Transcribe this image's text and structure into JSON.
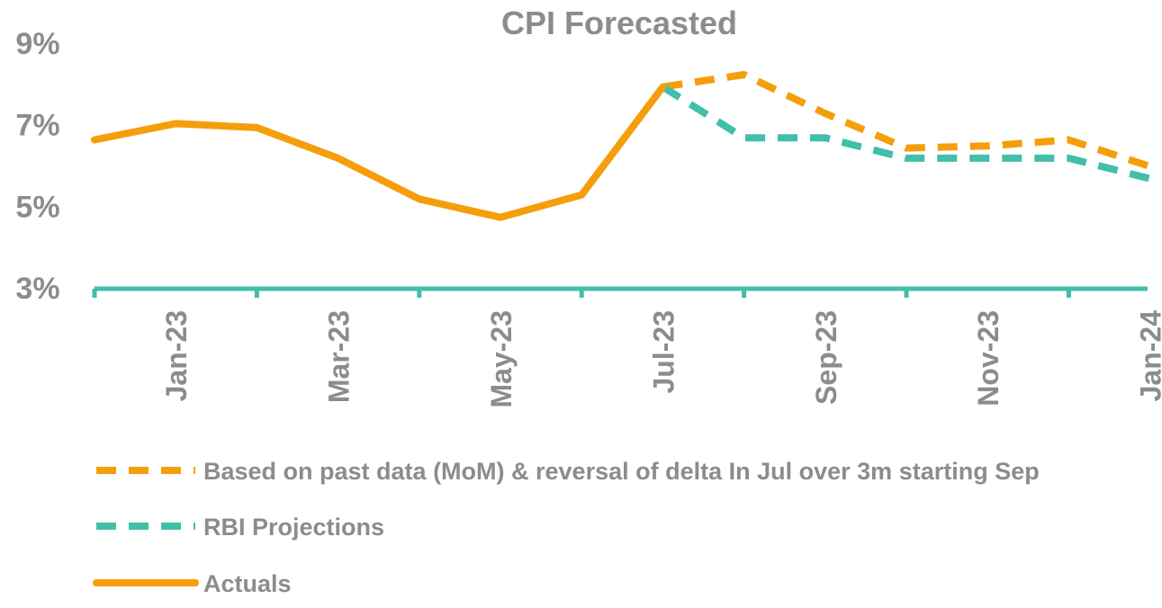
{
  "chart_data": {
    "type": "line",
    "title": "CPI Forecasted",
    "xlabel": "",
    "ylabel": "",
    "x": [
      "Dec-22",
      "Jan-23",
      "Feb-23",
      "Mar-23",
      "Apr-23",
      "May-23",
      "Jun-23",
      "Jul-23",
      "Aug-23",
      "Sep-23",
      "Oct-23",
      "Nov-23",
      "Dec-23",
      "Jan-24"
    ],
    "x_tick_labels": [
      "Jan-23",
      "Mar-23",
      "May-23",
      "Jul-23",
      "Sep-23",
      "Nov-23",
      "Jan-24"
    ],
    "y_tick_labels": [
      "9%",
      "7%",
      "5%",
      "3%"
    ],
    "ylim": [
      3,
      9
    ],
    "grid": false,
    "legend_position": "bottom",
    "series": [
      {
        "name": "Based on past data (MoM) & reversal of delta In Jul over 3m starting Sep",
        "style": "dashed",
        "color": "#F59E0B",
        "points": [
          {
            "x": "Jul-23",
            "y": 7.95
          },
          {
            "x": "Aug-23",
            "y": 8.25
          },
          {
            "x": "Sep-23",
            "y": 7.3
          },
          {
            "x": "Oct-23",
            "y": 6.45
          },
          {
            "x": "Nov-23",
            "y": 6.5
          },
          {
            "x": "Dec-23",
            "y": 6.65
          },
          {
            "x": "Jan-24",
            "y": 6.0
          }
        ]
      },
      {
        "name": "RBI Projections",
        "style": "dashed",
        "color": "#40BFAA",
        "points": [
          {
            "x": "Jul-23",
            "y": 7.95
          },
          {
            "x": "Aug-23",
            "y": 6.7
          },
          {
            "x": "Sep-23",
            "y": 6.7
          },
          {
            "x": "Oct-23",
            "y": 6.2
          },
          {
            "x": "Nov-23",
            "y": 6.2
          },
          {
            "x": "Dec-23",
            "y": 6.2
          },
          {
            "x": "Jan-24",
            "y": 5.7
          }
        ]
      },
      {
        "name": "Actuals",
        "style": "solid",
        "color": "#F59E0B",
        "points": [
          {
            "x": "Dec-22",
            "y": 6.65
          },
          {
            "x": "Jan-23",
            "y": 7.05
          },
          {
            "x": "Feb-23",
            "y": 6.95
          },
          {
            "x": "Mar-23",
            "y": 6.2
          },
          {
            "x": "Apr-23",
            "y": 5.2
          },
          {
            "x": "May-23",
            "y": 4.75
          },
          {
            "x": "Jun-23",
            "y": 5.3
          },
          {
            "x": "Jul-23",
            "y": 7.95
          }
        ]
      }
    ]
  },
  "colors": {
    "text": "#8C8C8C",
    "axis": "#40BFAA"
  }
}
